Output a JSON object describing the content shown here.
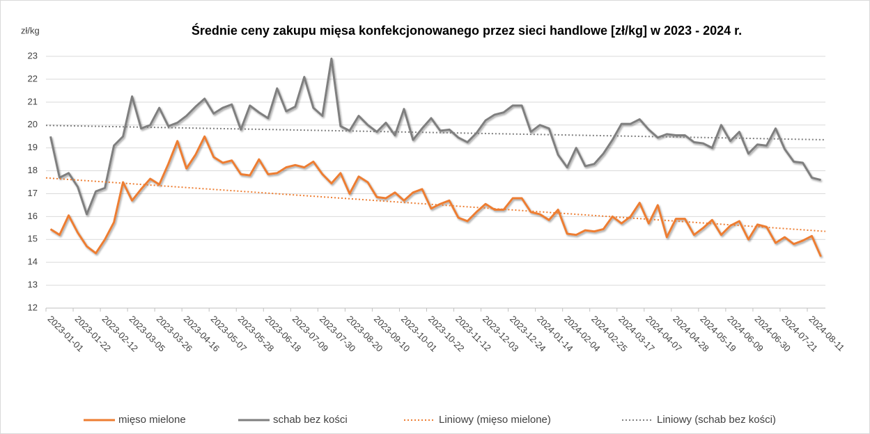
{
  "chart_data": {
    "type": "line",
    "title": "Średnie ceny zakupu mięsa konfekcjonowanego przez sieci handlowe [zł/kg]  w 2023 - 2024 r.",
    "y_label": "zł/kg",
    "categories": [
      "2023-01-01",
      null,
      null,
      "2023-01-22",
      null,
      null,
      "2023-02-12",
      null,
      null,
      "2023-03-05",
      null,
      null,
      "2023-03-26",
      null,
      null,
      "2023-04-16",
      null,
      null,
      "2023-05-07",
      null,
      null,
      "2023-05-28",
      null,
      null,
      "2023-06-18",
      null,
      null,
      "2023-07-09",
      null,
      null,
      "2023-07-30",
      null,
      null,
      "2023-08-20",
      null,
      null,
      "2023-09-10",
      null,
      null,
      "2023-10-01",
      null,
      null,
      "2023-10-22",
      null,
      null,
      "2023-11-12",
      null,
      null,
      "2023-12-03",
      null,
      null,
      "2023-12-24",
      null,
      null,
      "2024-01-14",
      null,
      null,
      "2024-02-04",
      null,
      null,
      "2024-02-25",
      null,
      null,
      "2024-03-17",
      null,
      null,
      "2024-04-07",
      null,
      null,
      "2024-04-28",
      null,
      null,
      "2024-05-19",
      null,
      null,
      "2024-06-09",
      null,
      null,
      "2024-06-30",
      null,
      null,
      "2024-07-21",
      null,
      null,
      "2024-08-11",
      null
    ],
    "series": [
      {
        "name": "mięso mielone",
        "color": "#ed7d31",
        "values": [
          15.45,
          15.2,
          16.05,
          15.3,
          14.7,
          14.4,
          15.0,
          15.75,
          17.5,
          16.7,
          17.2,
          17.65,
          17.4,
          18.3,
          19.3,
          18.1,
          18.7,
          19.5,
          18.6,
          18.35,
          18.45,
          17.85,
          17.8,
          18.5,
          17.85,
          17.9,
          18.15,
          18.25,
          18.15,
          18.4,
          17.85,
          17.45,
          17.9,
          17.0,
          17.75,
          17.5,
          16.85,
          16.8,
          17.05,
          16.7,
          17.05,
          17.2,
          16.35,
          16.55,
          16.7,
          15.95,
          15.8,
          16.2,
          16.55,
          16.3,
          16.3,
          16.8,
          16.8,
          16.2,
          16.1,
          15.85,
          16.3,
          15.25,
          15.2,
          15.4,
          15.35,
          15.45,
          16.0,
          15.7,
          16.0,
          16.6,
          15.7,
          16.5,
          15.1,
          15.9,
          15.9,
          15.2,
          15.5,
          15.85,
          15.2,
          15.6,
          15.8,
          15.0,
          15.65,
          15.55,
          14.85,
          15.1,
          14.8,
          14.95,
          15.15,
          14.25
        ]
      },
      {
        "name": "schab bez kości",
        "color": "#7f7f7f",
        "values": [
          19.5,
          17.7,
          17.9,
          17.3,
          16.1,
          17.1,
          17.25,
          19.1,
          19.5,
          21.25,
          19.85,
          20.0,
          20.75,
          19.95,
          20.1,
          20.4,
          20.8,
          21.15,
          20.5,
          20.75,
          20.9,
          19.8,
          20.85,
          20.55,
          20.3,
          21.6,
          20.6,
          20.8,
          22.1,
          20.75,
          20.4,
          22.9,
          19.95,
          19.75,
          20.4,
          20.0,
          19.7,
          20.1,
          19.55,
          20.7,
          19.35,
          19.85,
          20.3,
          19.75,
          19.8,
          19.45,
          19.25,
          19.65,
          20.2,
          20.45,
          20.55,
          20.85,
          20.85,
          19.7,
          20.0,
          19.85,
          18.7,
          18.15,
          19.0,
          18.2,
          18.3,
          18.75,
          19.35,
          20.05,
          20.05,
          20.25,
          19.8,
          19.45,
          19.6,
          19.55,
          19.55,
          19.25,
          19.2,
          19.0,
          20.0,
          19.3,
          19.7,
          18.75,
          19.15,
          19.1,
          19.85,
          18.95,
          18.4,
          18.35,
          17.7,
          17.6
        ]
      }
    ],
    "trendlines": [
      {
        "name": "Liniowy (mięso mielone)",
        "color": "#ed7d31",
        "series": 0
      },
      {
        "name": "Liniowy (schab bez kości)",
        "color": "#7f7f7f",
        "series": 1
      }
    ],
    "ylim": [
      12,
      23
    ],
    "yticks": [
      12,
      13,
      14,
      15,
      16,
      17,
      18,
      19,
      20,
      21,
      22,
      23
    ],
    "grid": true,
    "legend": "bottom"
  }
}
